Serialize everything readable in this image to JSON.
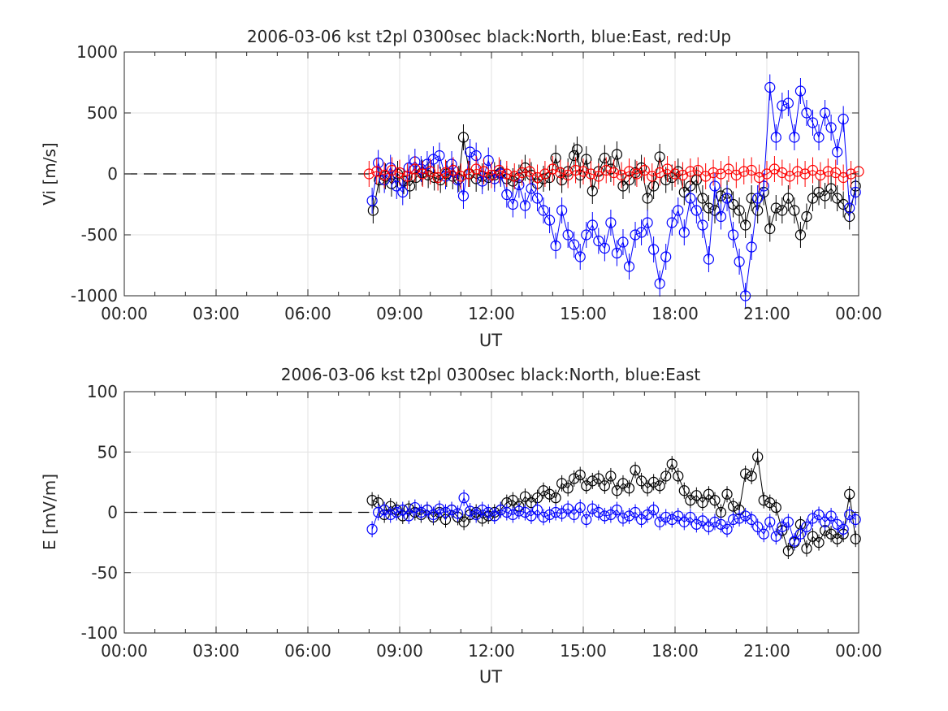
{
  "chart_data": [
    {
      "type": "scatter",
      "title": "2006-03-06 kst t2pl 0300sec black:North, blue:East, red:Up",
      "xlabel": "UT",
      "ylabel": "Vi [m/s]",
      "xlim": [
        "00:00",
        "24:00"
      ],
      "ylim": [
        -1000,
        1000
      ],
      "xticks": [
        "00:00",
        "03:00",
        "06:00",
        "09:00",
        "12:00",
        "15:00",
        "18:00",
        "21:00",
        "00:00"
      ],
      "yticks": [
        "1000",
        "500",
        "0",
        "-500",
        "-1000"
      ],
      "grid": true,
      "zero_line": {
        "from": "00:00",
        "to": "08:00",
        "y": 0,
        "style": "dashed",
        "color": "#000000"
      },
      "series": [
        {
          "name": "North",
          "color": "#000000",
          "x": [
            "08:08",
            "08:20",
            "08:32",
            "08:44",
            "08:56",
            "09:08",
            "09:20",
            "09:32",
            "09:44",
            "09:56",
            "10:08",
            "10:20",
            "10:32",
            "10:44",
            "10:56",
            "11:05",
            "11:17",
            "11:30",
            "11:42",
            "11:54",
            "12:06",
            "12:18",
            "12:30",
            "12:42",
            "12:54",
            "13:06",
            "13:18",
            "13:30",
            "13:42",
            "13:54",
            "14:06",
            "14:18",
            "14:30",
            "14:42",
            "14:48",
            "14:54",
            "15:06",
            "15:18",
            "15:30",
            "15:42",
            "15:54",
            "16:06",
            "16:18",
            "16:30",
            "16:42",
            "16:54",
            "17:06",
            "17:18",
            "17:30",
            "17:42",
            "17:54",
            "18:06",
            "18:18",
            "18:30",
            "18:42",
            "18:54",
            "19:06",
            "19:18",
            "19:30",
            "19:42",
            "19:54",
            "20:06",
            "20:18",
            "20:30",
            "20:42",
            "20:54",
            "21:06",
            "21:18",
            "21:30",
            "21:42",
            "21:54",
            "22:06",
            "22:18",
            "22:30",
            "22:42",
            "22:54",
            "23:06",
            "23:18",
            "23:30",
            "23:42",
            "23:54"
          ],
          "y": [
            -300,
            -50,
            -20,
            -80,
            0,
            -60,
            -100,
            -30,
            10,
            -10,
            -30,
            -50,
            0,
            -20,
            -40,
            300,
            0,
            -40,
            -20,
            -30,
            -10,
            10,
            -40,
            -60,
            -30,
            50,
            -10,
            -80,
            -40,
            -30,
            130,
            -50,
            20,
            150,
            200,
            -10,
            120,
            -140,
            20,
            130,
            40,
            160,
            -100,
            -50,
            10,
            50,
            -200,
            -100,
            140,
            -50,
            -30,
            20,
            -150,
            -100,
            -50,
            -200,
            -280,
            -300,
            -180,
            -160,
            -250,
            -300,
            -420,
            -200,
            -300,
            -150,
            -450,
            -280,
            -300,
            -200,
            -300,
            -500,
            -350,
            -200,
            -150,
            -180,
            -120,
            -200,
            -250,
            -350,
            -100
          ]
        },
        {
          "name": "East",
          "color": "#0000ff",
          "x": [
            "08:06",
            "08:18",
            "08:30",
            "08:42",
            "08:54",
            "09:06",
            "09:18",
            "09:30",
            "09:42",
            "09:54",
            "10:06",
            "10:18",
            "10:30",
            "10:42",
            "10:54",
            "11:05",
            "11:18",
            "11:30",
            "11:42",
            "11:54",
            "12:06",
            "12:18",
            "12:30",
            "12:42",
            "12:54",
            "13:06",
            "13:18",
            "13:30",
            "13:42",
            "13:54",
            "14:06",
            "14:18",
            "14:30",
            "14:42",
            "14:54",
            "15:06",
            "15:18",
            "15:30",
            "15:42",
            "15:54",
            "16:06",
            "16:18",
            "16:30",
            "16:42",
            "16:54",
            "17:06",
            "17:18",
            "17:30",
            "17:42",
            "17:54",
            "18:06",
            "18:18",
            "18:30",
            "18:42",
            "18:54",
            "19:06",
            "19:18",
            "19:30",
            "19:42",
            "19:54",
            "20:06",
            "20:18",
            "20:30",
            "20:42",
            "20:54",
            "21:06",
            "21:18",
            "21:30",
            "21:42",
            "21:54",
            "22:06",
            "22:18",
            "22:30",
            "22:42",
            "22:54",
            "23:06",
            "23:18",
            "23:30",
            "23:42",
            "23:54"
          ],
          "y": [
            -220,
            90,
            -50,
            50,
            -100,
            -150,
            50,
            100,
            40,
            80,
            120,
            150,
            -20,
            80,
            -50,
            -180,
            180,
            150,
            -60,
            110,
            -40,
            0,
            -170,
            -250,
            -90,
            -260,
            -120,
            -200,
            -300,
            -380,
            -590,
            -300,
            -500,
            -580,
            -680,
            -500,
            -420,
            -550,
            -610,
            -400,
            -650,
            -560,
            -760,
            -500,
            -480,
            -400,
            -620,
            -900,
            -680,
            -400,
            -300,
            -480,
            -200,
            -300,
            -420,
            -700,
            -100,
            -350,
            -200,
            -500,
            -720,
            -1000,
            -600,
            -200,
            -100,
            710,
            300,
            560,
            580,
            300,
            680,
            500,
            420,
            300,
            500,
            380,
            180,
            450,
            -280,
            -150
          ]
        },
        {
          "name": "Up",
          "color": "#ff0000",
          "x": [
            "08:00",
            "08:15",
            "08:30",
            "08:45",
            "09:00",
            "09:15",
            "09:30",
            "09:45",
            "10:00",
            "10:15",
            "10:30",
            "10:45",
            "11:00",
            "11:15",
            "11:30",
            "11:45",
            "12:00",
            "12:15",
            "12:30",
            "12:45",
            "13:00",
            "13:15",
            "13:30",
            "13:45",
            "14:00",
            "14:15",
            "14:30",
            "14:45",
            "15:00",
            "15:15",
            "15:30",
            "15:45",
            "16:00",
            "16:15",
            "16:30",
            "16:45",
            "17:00",
            "17:15",
            "17:30",
            "17:45",
            "18:00",
            "18:15",
            "18:30",
            "18:45",
            "19:00",
            "19:15",
            "19:30",
            "19:45",
            "20:00",
            "20:15",
            "20:30",
            "20:45",
            "21:00",
            "21:15",
            "21:30",
            "21:45",
            "22:00",
            "22:15",
            "22:30",
            "22:45",
            "23:00",
            "23:15",
            "23:30",
            "23:45",
            "24:00"
          ],
          "y": [
            0,
            20,
            -10,
            30,
            10,
            -20,
            40,
            0,
            20,
            -30,
            10,
            30,
            -20,
            0,
            40,
            20,
            -10,
            30,
            0,
            -20,
            10,
            20,
            -30,
            0,
            40,
            10,
            -10,
            30,
            20,
            0,
            -20,
            30,
            10,
            -10,
            20,
            0,
            30,
            -20,
            10,
            40,
            0,
            -10,
            20,
            30,
            -20,
            10,
            0,
            40,
            -10,
            20,
            30,
            -30,
            0,
            40,
            10,
            -20,
            20,
            0,
            30,
            -10,
            20,
            10,
            -30,
            0,
            20
          ]
        }
      ]
    },
    {
      "type": "scatter",
      "title": "2006-03-06 kst t2pl 0300sec black:North, blue:East",
      "xlabel": "UT",
      "ylabel": "E [mV/m]",
      "xlim": [
        "00:00",
        "24:00"
      ],
      "ylim": [
        -100,
        100
      ],
      "xticks": [
        "00:00",
        "03:00",
        "06:00",
        "09:00",
        "12:00",
        "15:00",
        "18:00",
        "21:00",
        "00:00"
      ],
      "yticks": [
        "100",
        "50",
        "0",
        "-50",
        "-100"
      ],
      "grid": true,
      "zero_line": {
        "from": "00:00",
        "to": "08:00",
        "y": 0,
        "style": "dashed",
        "color": "#000000"
      },
      "series": [
        {
          "name": "North",
          "color": "#000000",
          "x": [
            "08:06",
            "08:18",
            "08:30",
            "08:42",
            "08:54",
            "09:06",
            "09:18",
            "09:30",
            "09:42",
            "09:54",
            "10:06",
            "10:18",
            "10:30",
            "10:42",
            "10:54",
            "11:06",
            "11:18",
            "11:30",
            "11:42",
            "11:54",
            "12:06",
            "12:18",
            "12:30",
            "12:42",
            "12:54",
            "13:06",
            "13:18",
            "13:30",
            "13:42",
            "13:54",
            "14:06",
            "14:18",
            "14:30",
            "14:42",
            "14:54",
            "15:06",
            "15:18",
            "15:30",
            "15:42",
            "15:54",
            "16:06",
            "16:18",
            "16:30",
            "16:42",
            "16:54",
            "17:06",
            "17:18",
            "17:30",
            "17:42",
            "17:54",
            "18:06",
            "18:18",
            "18:30",
            "18:42",
            "18:54",
            "19:06",
            "19:18",
            "19:30",
            "19:42",
            "19:54",
            "20:06",
            "20:18",
            "20:30",
            "20:42",
            "20:54",
            "21:06",
            "21:18",
            "21:30",
            "21:42",
            "21:54",
            "22:06",
            "22:18",
            "22:30",
            "22:42",
            "22:54",
            "23:06",
            "23:18",
            "23:30",
            "23:42",
            "23:54"
          ],
          "y": [
            10,
            8,
            -2,
            5,
            2,
            -3,
            3,
            0,
            -2,
            2,
            -4,
            0,
            -6,
            2,
            -4,
            -8,
            -2,
            0,
            -5,
            -3,
            0,
            2,
            8,
            10,
            5,
            13,
            8,
            12,
            18,
            15,
            12,
            24,
            20,
            28,
            31,
            22,
            26,
            28,
            22,
            30,
            18,
            24,
            20,
            35,
            26,
            20,
            25,
            22,
            30,
            40,
            30,
            18,
            10,
            14,
            8,
            15,
            10,
            0,
            15,
            5,
            2,
            32,
            30,
            46,
            10,
            8,
            4,
            -15,
            -32,
            -25,
            -10,
            -30,
            -20,
            -25,
            -15,
            -18,
            -22,
            -18,
            15,
            -22
          ]
        },
        {
          "name": "East",
          "color": "#0000ff",
          "x": [
            "08:06",
            "08:18",
            "08:30",
            "08:42",
            "08:54",
            "09:06",
            "09:18",
            "09:30",
            "09:42",
            "09:54",
            "10:06",
            "10:18",
            "10:30",
            "10:42",
            "10:54",
            "11:06",
            "11:18",
            "11:30",
            "11:42",
            "11:54",
            "12:06",
            "12:18",
            "12:30",
            "12:42",
            "12:54",
            "13:06",
            "13:18",
            "13:30",
            "13:42",
            "13:54",
            "14:06",
            "14:18",
            "14:30",
            "14:42",
            "14:54",
            "15:06",
            "15:18",
            "15:30",
            "15:42",
            "15:54",
            "16:06",
            "16:18",
            "16:30",
            "16:42",
            "16:54",
            "17:06",
            "17:18",
            "17:30",
            "17:42",
            "17:54",
            "18:06",
            "18:18",
            "18:30",
            "18:42",
            "18:54",
            "19:06",
            "19:18",
            "19:30",
            "19:42",
            "19:54",
            "20:06",
            "20:18",
            "20:30",
            "20:42",
            "20:54",
            "21:06",
            "21:18",
            "21:30",
            "21:42",
            "21:54",
            "22:06",
            "22:18",
            "22:30",
            "22:42",
            "22:54",
            "23:06",
            "23:18",
            "23:30",
            "23:42",
            "23:54"
          ],
          "y": [
            -14,
            0,
            2,
            -2,
            0,
            2,
            -3,
            4,
            0,
            2,
            -2,
            3,
            0,
            2,
            -1,
            12,
            1,
            -2,
            2,
            0,
            -3,
            2,
            0,
            -2,
            1,
            0,
            -3,
            2,
            -4,
            -2,
            0,
            -1,
            3,
            -2,
            4,
            -6,
            3,
            0,
            -3,
            -2,
            2,
            -5,
            -3,
            0,
            -6,
            -2,
            2,
            -8,
            -4,
            -6,
            -3,
            -8,
            -4,
            -10,
            -7,
            -12,
            -8,
            -10,
            -14,
            -6,
            -5,
            -3,
            -6,
            -12,
            -18,
            -8,
            -20,
            -12,
            -8,
            -24,
            -18,
            -12,
            -5,
            -2,
            -8,
            -3,
            -10,
            -14,
            -2,
            -6
          ]
        }
      ]
    }
  ]
}
